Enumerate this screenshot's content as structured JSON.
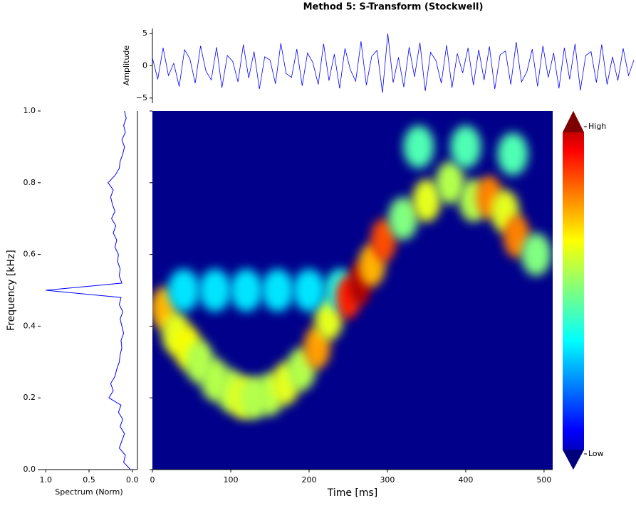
{
  "chart_data": [
    {
      "type": "signal",
      "title": "Method 5: S-Transform (Stockwell)",
      "ylabel": "Amplitude",
      "color": "#0000ff",
      "xlim": [
        0,
        511
      ],
      "ylim": [
        -5.8,
        5.8
      ],
      "yticks": [
        5,
        0,
        {
          "value": -5,
          "label": "−5"
        }
      ],
      "values": [
        1.2,
        -2.1,
        2.8,
        -1.5,
        0.4,
        -3.2,
        2.5,
        1.1,
        -2.7,
        3.1,
        -0.8,
        -2.2,
        2.9,
        -3.4,
        1.6,
        0.7,
        -2.5,
        3.3,
        -1.9,
        2.2,
        -3.6,
        1.4,
        0.9,
        -2.8,
        3.5,
        -1.2,
        -1.8,
        2.6,
        -3.1,
        2.0,
        0.5,
        -2.9,
        3.4,
        -2.3,
        1.8,
        -3.5,
        2.7,
        -0.6,
        -2.4,
        3.8,
        -3.0,
        1.5,
        2.4,
        -4.2,
        5.0,
        -2.6,
        1.3,
        -3.3,
        2.9,
        -1.7,
        3.6,
        -3.9,
        2.1,
        0.8,
        -2.7,
        3.2,
        -3.4,
        1.9,
        -1.1,
        2.8,
        -3.0,
        2.5,
        -2.2,
        3.0,
        -3.6,
        1.7,
        2.3,
        -2.9,
        3.7,
        -2.5,
        -0.9,
        2.6,
        -3.2,
        3.1,
        -1.8,
        2.0,
        -3.5,
        2.8,
        -2.1,
        3.4,
        -3.8,
        1.6,
        2.2,
        -2.6,
        3.3,
        -2.9,
        1.4,
        -2.3,
        2.7,
        -1.5,
        0.9
      ]
    },
    {
      "type": "spectrum",
      "xlabel": "Spectrum (Norm)",
      "color": "#0000ff",
      "xlim": [
        1.06,
        -0.06
      ],
      "ylim": [
        0,
        1
      ],
      "xticks": [
        {
          "value": 1,
          "label": "1.0"
        },
        0.5,
        {
          "value": 0,
          "label": "0.0"
        }
      ],
      "y": [
        0,
        0.02,
        0.04,
        0.06,
        0.08,
        0.1,
        0.12,
        0.14,
        0.16,
        0.18,
        0.2,
        0.22,
        0.24,
        0.26,
        0.28,
        0.3,
        0.32,
        0.34,
        0.36,
        0.38,
        0.4,
        0.42,
        0.44,
        0.46,
        0.48,
        0.5,
        0.52,
        0.54,
        0.56,
        0.58,
        0.6,
        0.62,
        0.64,
        0.66,
        0.68,
        0.7,
        0.72,
        0.74,
        0.76,
        0.78,
        0.8,
        0.82,
        0.84,
        0.86,
        0.88,
        0.9,
        0.92,
        0.94,
        0.96,
        0.98,
        1
      ],
      "values": [
        0.02,
        0.1,
        0.08,
        0.15,
        0.12,
        0.09,
        0.14,
        0.11,
        0.16,
        0.13,
        0.27,
        0.22,
        0.25,
        0.2,
        0.18,
        0.15,
        0.14,
        0.12,
        0.13,
        0.1,
        0.12,
        0.14,
        0.11,
        0.15,
        0.13,
        1.0,
        0.12,
        0.15,
        0.14,
        0.17,
        0.16,
        0.2,
        0.18,
        0.22,
        0.19,
        0.24,
        0.2,
        0.23,
        0.25,
        0.22,
        0.28,
        0.2,
        0.15,
        0.14,
        0.11,
        0.09,
        0.12,
        0.08,
        0.1,
        0.07,
        0.09
      ]
    },
    {
      "type": "heatmap",
      "xlabel": "Time [ms]",
      "ylabel": "Frequency [kHz]",
      "background": "#00008a",
      "xlim": [
        0,
        511
      ],
      "ylim": [
        0,
        1
      ],
      "xticks": [
        0,
        100,
        200,
        300,
        400,
        500
      ],
      "yticks": [
        {
          "value": 0,
          "label": "0.0"
        },
        0.2,
        0.4,
        0.6,
        0.8,
        {
          "value": 1,
          "label": "1.0"
        }
      ],
      "colorbar_labels": [
        "High",
        "Low"
      ],
      "x": [
        15,
        30,
        45,
        60,
        80,
        100,
        115,
        130,
        150,
        170,
        190,
        210,
        225,
        40,
        80,
        120,
        160,
        200,
        240,
        250,
        265,
        280,
        295,
        320,
        350,
        380,
        410,
        430,
        450,
        465,
        490,
        340,
        400,
        460
      ],
      "y": [
        0.45,
        0.38,
        0.34,
        0.3,
        0.25,
        0.22,
        0.2,
        0.2,
        0.21,
        0.24,
        0.28,
        0.34,
        0.42,
        0.5,
        0.5,
        0.5,
        0.5,
        0.5,
        0.5,
        0.48,
        0.52,
        0.57,
        0.64,
        0.7,
        0.75,
        0.8,
        0.75,
        0.76,
        0.72,
        0.65,
        0.6,
        0.9,
        0.9,
        0.88
      ],
      "values": [
        0.7,
        0.6,
        0.62,
        0.55,
        0.55,
        0.55,
        0.6,
        0.55,
        0.55,
        0.6,
        0.55,
        0.72,
        0.6,
        0.35,
        0.35,
        0.35,
        0.35,
        0.35,
        0.4,
        0.85,
        0.95,
        0.7,
        0.8,
        0.5,
        0.6,
        0.55,
        0.55,
        0.75,
        0.6,
        0.75,
        0.5,
        0.45,
        0.45,
        0.45
      ]
    }
  ]
}
